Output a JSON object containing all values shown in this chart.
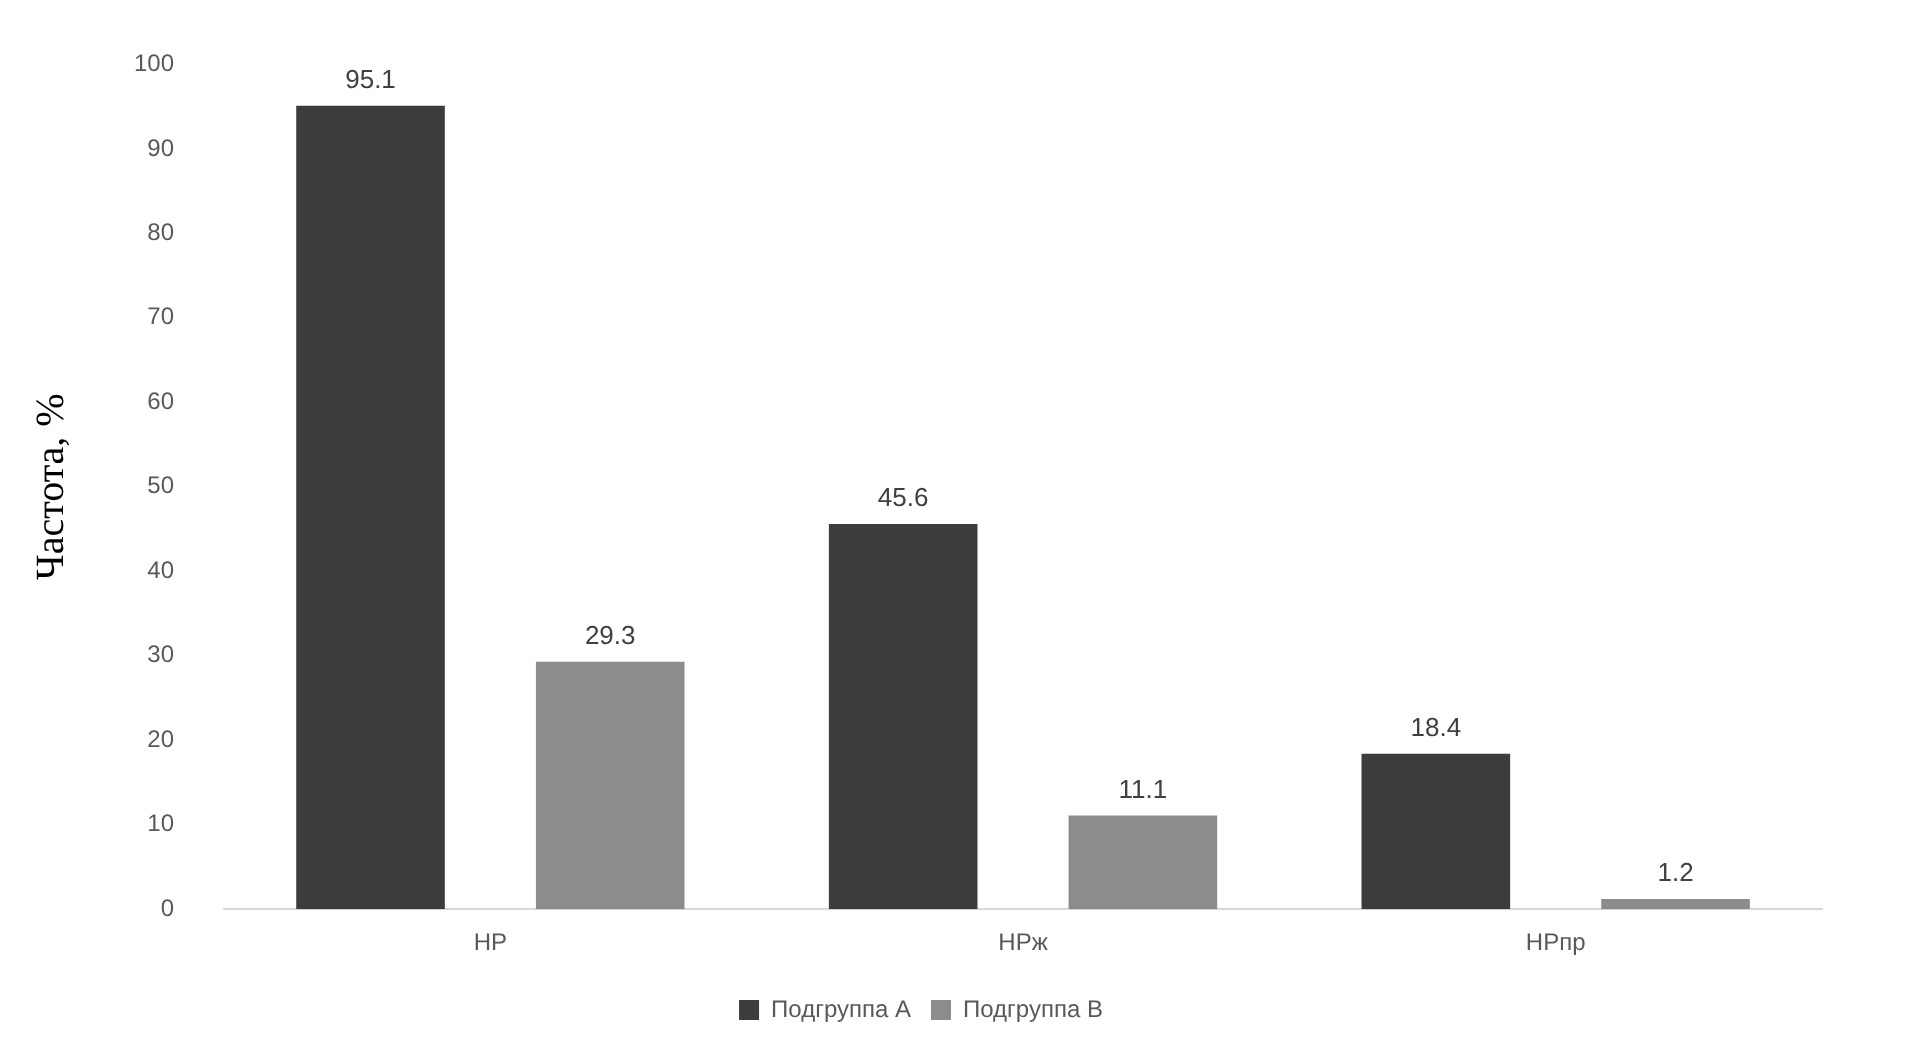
{
  "chart_data": {
    "type": "bar",
    "ylabel": "Частота, %",
    "categories": [
      "НР",
      "НРж",
      "НРпр"
    ],
    "series": [
      {
        "name": "Подгруппа А",
        "color": "#3c3c3c",
        "values": [
          95.1,
          45.6,
          18.4
        ]
      },
      {
        "name": "Подгруппа В",
        "color": "#8c8c8c",
        "values": [
          29.3,
          11.1,
          1.2
        ]
      }
    ],
    "ylim": [
      0,
      100
    ],
    "yticks": [
      0,
      10,
      20,
      30,
      40,
      50,
      60,
      70,
      80,
      90,
      100
    ],
    "grid": false,
    "legend": "bottom",
    "data_labels": true
  }
}
